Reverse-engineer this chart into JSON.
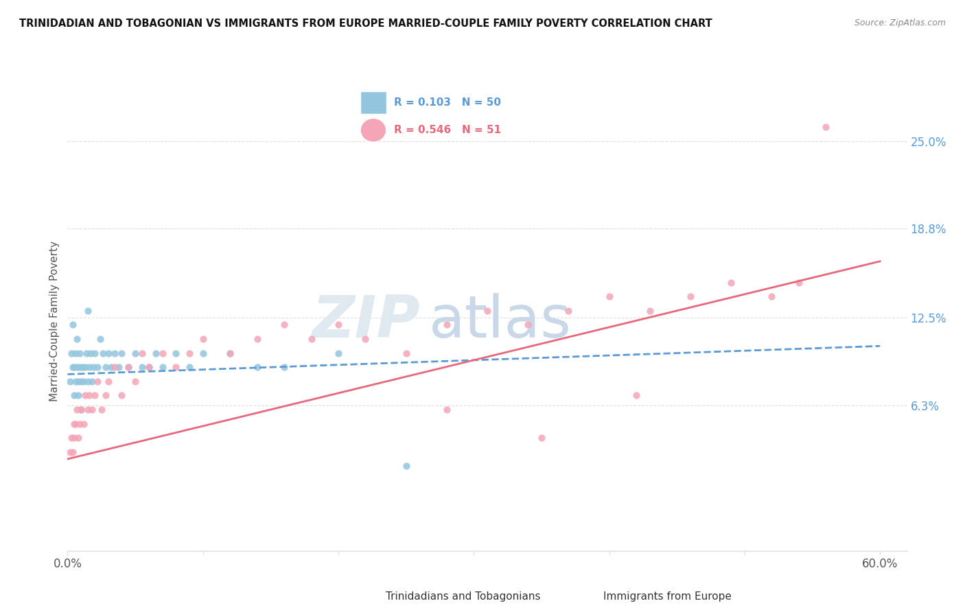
{
  "title": "TRINIDADIAN AND TOBAGONIAN VS IMMIGRANTS FROM EUROPE MARRIED-COUPLE FAMILY POVERTY CORRELATION CHART",
  "source": "Source: ZipAtlas.com",
  "ylabel": "Married-Couple Family Poverty",
  "xlim": [
    0.0,
    0.62
  ],
  "ylim": [
    -0.04,
    0.285
  ],
  "yticks": [
    0.063,
    0.125,
    0.188,
    0.25
  ],
  "ytick_labels": [
    "6.3%",
    "12.5%",
    "18.8%",
    "25.0%"
  ],
  "x_left_label": "0.0%",
  "x_right_label": "60.0%",
  "blue_label": "Trinidadians and Tobagonians",
  "pink_label": "Immigrants from Europe",
  "blue_R": 0.103,
  "blue_N": 50,
  "pink_R": 0.546,
  "pink_N": 51,
  "blue_color": "#92c5de",
  "pink_color": "#f4a6b8",
  "blue_trend_color": "#5b9bd5",
  "pink_trend_color": "#e8677a",
  "background_color": "#ffffff",
  "grid_color": "#dddddd",
  "right_axis_color": "#5b9bd5",
  "legend_bg_color": "#ddeeff",
  "legend_border_color": "#aaccee",
  "title_color": "#111111",
  "source_color": "#888888",
  "ylabel_color": "#555555",
  "xtick_color": "#555555",
  "watermark_zip_color": "#e0e8f0",
  "watermark_atlas_color": "#c8d8e8",
  "blue_scatter_x": [
    0.002,
    0.003,
    0.004,
    0.004,
    0.005,
    0.005,
    0.006,
    0.006,
    0.007,
    0.007,
    0.008,
    0.008,
    0.009,
    0.009,
    0.01,
    0.01,
    0.011,
    0.012,
    0.013,
    0.014,
    0.015,
    0.015,
    0.016,
    0.017,
    0.018,
    0.019,
    0.02,
    0.022,
    0.024,
    0.026,
    0.028,
    0.03,
    0.032,
    0.035,
    0.038,
    0.04,
    0.045,
    0.05,
    0.055,
    0.06,
    0.065,
    0.07,
    0.08,
    0.09,
    0.1,
    0.12,
    0.14,
    0.16,
    0.2,
    0.25
  ],
  "blue_scatter_y": [
    0.08,
    0.1,
    0.09,
    0.12,
    0.07,
    0.09,
    0.08,
    0.1,
    0.09,
    0.11,
    0.07,
    0.08,
    0.09,
    0.1,
    0.06,
    0.08,
    0.09,
    0.08,
    0.09,
    0.1,
    0.08,
    0.13,
    0.09,
    0.1,
    0.08,
    0.09,
    0.1,
    0.09,
    0.11,
    0.1,
    0.09,
    0.1,
    0.09,
    0.1,
    0.09,
    0.1,
    0.09,
    0.1,
    0.09,
    0.09,
    0.1,
    0.09,
    0.1,
    0.09,
    0.1,
    0.1,
    0.09,
    0.09,
    0.1,
    0.02
  ],
  "pink_scatter_x": [
    0.002,
    0.003,
    0.004,
    0.005,
    0.005,
    0.006,
    0.007,
    0.008,
    0.009,
    0.01,
    0.012,
    0.013,
    0.015,
    0.016,
    0.018,
    0.02,
    0.022,
    0.025,
    0.028,
    0.03,
    0.035,
    0.04,
    0.045,
    0.05,
    0.055,
    0.06,
    0.07,
    0.08,
    0.09,
    0.1,
    0.12,
    0.14,
    0.16,
    0.18,
    0.2,
    0.22,
    0.25,
    0.28,
    0.31,
    0.34,
    0.37,
    0.4,
    0.43,
    0.46,
    0.49,
    0.52,
    0.54,
    0.28,
    0.35,
    0.42,
    0.56
  ],
  "pink_scatter_y": [
    0.03,
    0.04,
    0.03,
    0.05,
    0.04,
    0.05,
    0.06,
    0.04,
    0.05,
    0.06,
    0.05,
    0.07,
    0.06,
    0.07,
    0.06,
    0.07,
    0.08,
    0.06,
    0.07,
    0.08,
    0.09,
    0.07,
    0.09,
    0.08,
    0.1,
    0.09,
    0.1,
    0.09,
    0.1,
    0.11,
    0.1,
    0.11,
    0.12,
    0.11,
    0.12,
    0.11,
    0.1,
    0.12,
    0.13,
    0.12,
    0.13,
    0.14,
    0.13,
    0.14,
    0.15,
    0.14,
    0.15,
    0.06,
    0.04,
    0.07,
    0.26
  ],
  "blue_trend_x": [
    0.0,
    0.6
  ],
  "blue_trend_y": [
    0.085,
    0.105
  ],
  "pink_trend_x": [
    0.0,
    0.6
  ],
  "pink_trend_y": [
    0.025,
    0.165
  ]
}
